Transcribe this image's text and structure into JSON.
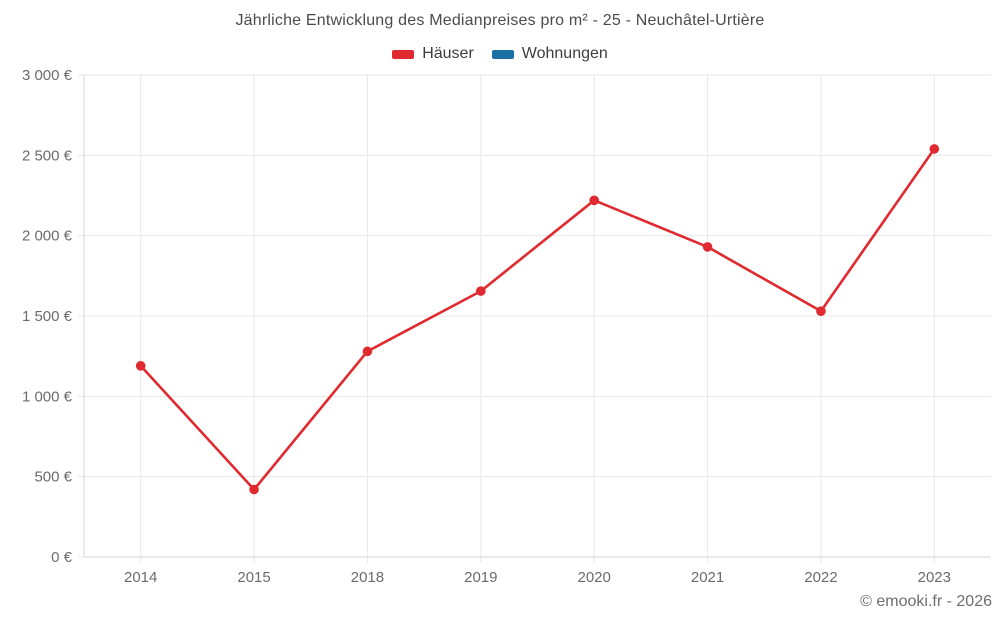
{
  "title": "Jährliche Entwicklung des Medianpreises pro m² - 25 - Neuchâtel-Urtière",
  "legend": [
    {
      "label": "Häuser",
      "color": "#e02a2f"
    },
    {
      "label": "Wohnungen",
      "color": "#1a6fa5"
    }
  ],
  "footer": "© emooki.fr - 2026",
  "colors": {
    "gridline": "#e8e8e8",
    "axis": "#d4d4d4",
    "tick_text": "#6b6b6b",
    "title_text": "#4b4b4b"
  },
  "chart_data": {
    "type": "line",
    "title": "Jährliche Entwicklung des Medianpreises pro m² - 25 - Neuchâtel-Urtière",
    "categories": [
      "2014",
      "2015",
      "2018",
      "2019",
      "2020",
      "2021",
      "2022",
      "2023"
    ],
    "series": [
      {
        "name": "Häuser",
        "color": "#e02a2f",
        "values": [
          1190,
          420,
          1280,
          1655,
          2220,
          1930,
          1530,
          2540
        ]
      },
      {
        "name": "Wohnungen",
        "color": "#1a6fa5",
        "values": []
      }
    ],
    "xlabel": "",
    "ylabel": "",
    "ylim": [
      0,
      3000
    ],
    "ytick_step": 500,
    "ytick_labels": [
      "0 €",
      "500 €",
      "1 000 €",
      "1 500 €",
      "2 000 €",
      "2 500 €",
      "3 000 €"
    ],
    "grid": true,
    "legend_position": "top",
    "point_markers": true
  }
}
